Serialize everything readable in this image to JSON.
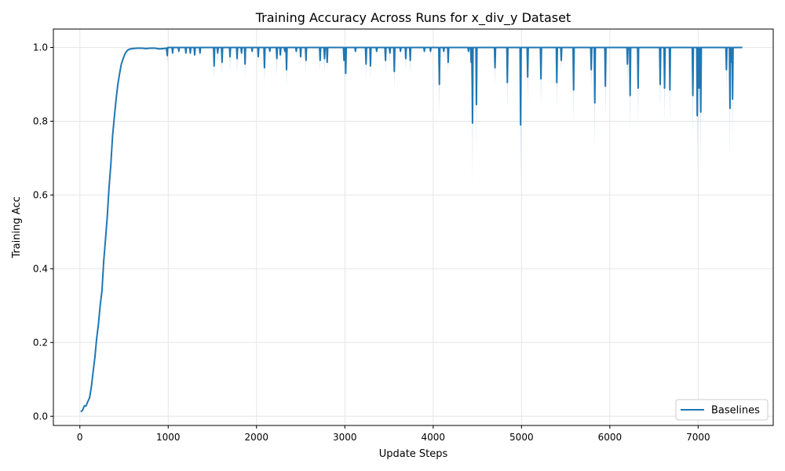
{
  "chart_data": {
    "type": "line",
    "title": "Training Accuracy Across Runs for x_div_y Dataset",
    "xlabel": "Update Steps",
    "ylabel": "Training Acc",
    "xlim": [
      -300,
      7850
    ],
    "ylim": [
      -0.025,
      1.05
    ],
    "xticks": [
      0,
      1000,
      2000,
      3000,
      4000,
      5000,
      6000,
      7000
    ],
    "yticks": [
      0.0,
      0.2,
      0.4,
      0.6,
      0.8,
      1.0
    ],
    "ytick_labels": [
      "0.0",
      "0.2",
      "0.4",
      "0.6",
      "0.8",
      "1.0"
    ],
    "grid": true,
    "legend": {
      "position": "lower-right"
    },
    "colors": {
      "line": "#1f77b4",
      "band": "#a6c8e6",
      "grid": "#e6e6e6"
    },
    "series": [
      {
        "name": "Baselines",
        "ramp": {
          "x": [
            10,
            30,
            50,
            70,
            90,
            110,
            130,
            150,
            170,
            190,
            210,
            230,
            250,
            270,
            290,
            310,
            330,
            350,
            370,
            390,
            410,
            430,
            450,
            470,
            490,
            510,
            530,
            550,
            570,
            600,
            650,
            700,
            750,
            800,
            850,
            900,
            950,
            980
          ],
          "y": [
            0.012,
            0.016,
            0.028,
            0.028,
            0.04,
            0.05,
            0.08,
            0.12,
            0.16,
            0.21,
            0.25,
            0.3,
            0.34,
            0.42,
            0.48,
            0.54,
            0.62,
            0.68,
            0.76,
            0.81,
            0.86,
            0.9,
            0.93,
            0.955,
            0.97,
            0.982,
            0.99,
            0.994,
            0.996,
            0.997,
            0.998,
            0.998,
            0.997,
            0.998,
            0.998,
            0.996,
            0.997,
            0.998
          ]
        },
        "end_x": 7500,
        "plateau": 1.0,
        "dips": [
          [
            990,
            0.978,
            0.955
          ],
          [
            1050,
            0.985,
            0.975
          ],
          [
            1120,
            0.99,
            0.98
          ],
          [
            1200,
            0.985,
            0.975
          ],
          [
            1250,
            0.985,
            0.975
          ],
          [
            1300,
            0.98,
            0.97
          ],
          [
            1360,
            0.985,
            0.975
          ],
          [
            1520,
            0.95,
            0.91
          ],
          [
            1560,
            0.985,
            0.96
          ],
          [
            1610,
            0.96,
            0.925
          ],
          [
            1700,
            0.975,
            0.93
          ],
          [
            1780,
            0.97,
            0.925
          ],
          [
            1830,
            0.985,
            0.97
          ],
          [
            1870,
            0.955,
            0.92
          ],
          [
            1950,
            0.99,
            0.98
          ],
          [
            2020,
            0.975,
            0.955
          ],
          [
            2090,
            0.945,
            0.9
          ],
          [
            2150,
            0.99,
            0.98
          ],
          [
            2230,
            0.97,
            0.92
          ],
          [
            2270,
            0.98,
            0.96
          ],
          [
            2320,
            0.99,
            0.975
          ],
          [
            2340,
            0.94,
            0.885
          ],
          [
            2450,
            0.99,
            0.98
          ],
          [
            2500,
            0.975,
            0.955
          ],
          [
            2560,
            0.965,
            0.93
          ],
          [
            2720,
            0.965,
            0.935
          ],
          [
            2770,
            0.97,
            0.93
          ],
          [
            2800,
            0.96,
            0.94
          ],
          [
            2990,
            0.965,
            0.91
          ],
          [
            3010,
            0.93,
            0.905
          ],
          [
            3120,
            0.99,
            0.98
          ],
          [
            3240,
            0.955,
            0.915
          ],
          [
            3290,
            0.95,
            0.915
          ],
          [
            3360,
            0.99,
            0.98
          ],
          [
            3460,
            0.965,
            0.93
          ],
          [
            3510,
            0.985,
            0.96
          ],
          [
            3560,
            0.935,
            0.885
          ],
          [
            3630,
            0.99,
            0.98
          ],
          [
            3690,
            0.97,
            0.935
          ],
          [
            3740,
            0.965,
            0.925
          ],
          [
            3900,
            0.99,
            0.98
          ],
          [
            3970,
            0.99,
            0.97
          ],
          [
            4070,
            0.9,
            0.81
          ],
          [
            4120,
            0.99,
            0.97
          ],
          [
            4170,
            0.96,
            0.925
          ],
          [
            4400,
            0.99,
            0.98
          ],
          [
            4430,
            0.96,
            0.9
          ],
          [
            4445,
            0.795,
            0.63
          ],
          [
            4490,
            0.845,
            0.72
          ],
          [
            4700,
            0.945,
            0.895
          ],
          [
            4840,
            0.905,
            0.825
          ],
          [
            4990,
            0.79,
            0.615
          ],
          [
            5070,
            0.92,
            0.845
          ],
          [
            5220,
            0.915,
            0.84
          ],
          [
            5400,
            0.905,
            0.83
          ],
          [
            5450,
            0.965,
            0.93
          ],
          [
            5590,
            0.885,
            0.795
          ],
          [
            5790,
            0.94,
            0.885
          ],
          [
            5830,
            0.85,
            0.725
          ],
          [
            5950,
            0.895,
            0.805
          ],
          [
            6200,
            0.955,
            0.9
          ],
          [
            6230,
            0.87,
            0.76
          ],
          [
            6320,
            0.89,
            0.795
          ],
          [
            6570,
            0.9,
            0.825
          ],
          [
            6620,
            0.89,
            0.8
          ],
          [
            6680,
            0.885,
            0.785
          ],
          [
            6940,
            0.87,
            0.76
          ],
          [
            6990,
            0.815,
            0.66
          ],
          [
            7010,
            0.89,
            0.77
          ],
          [
            7030,
            0.825,
            0.675
          ],
          [
            7320,
            0.94,
            0.885
          ],
          [
            7360,
            0.835,
            0.695
          ],
          [
            7380,
            0.96,
            0.87
          ],
          [
            7390,
            0.86,
            0.73
          ]
        ]
      }
    ]
  }
}
